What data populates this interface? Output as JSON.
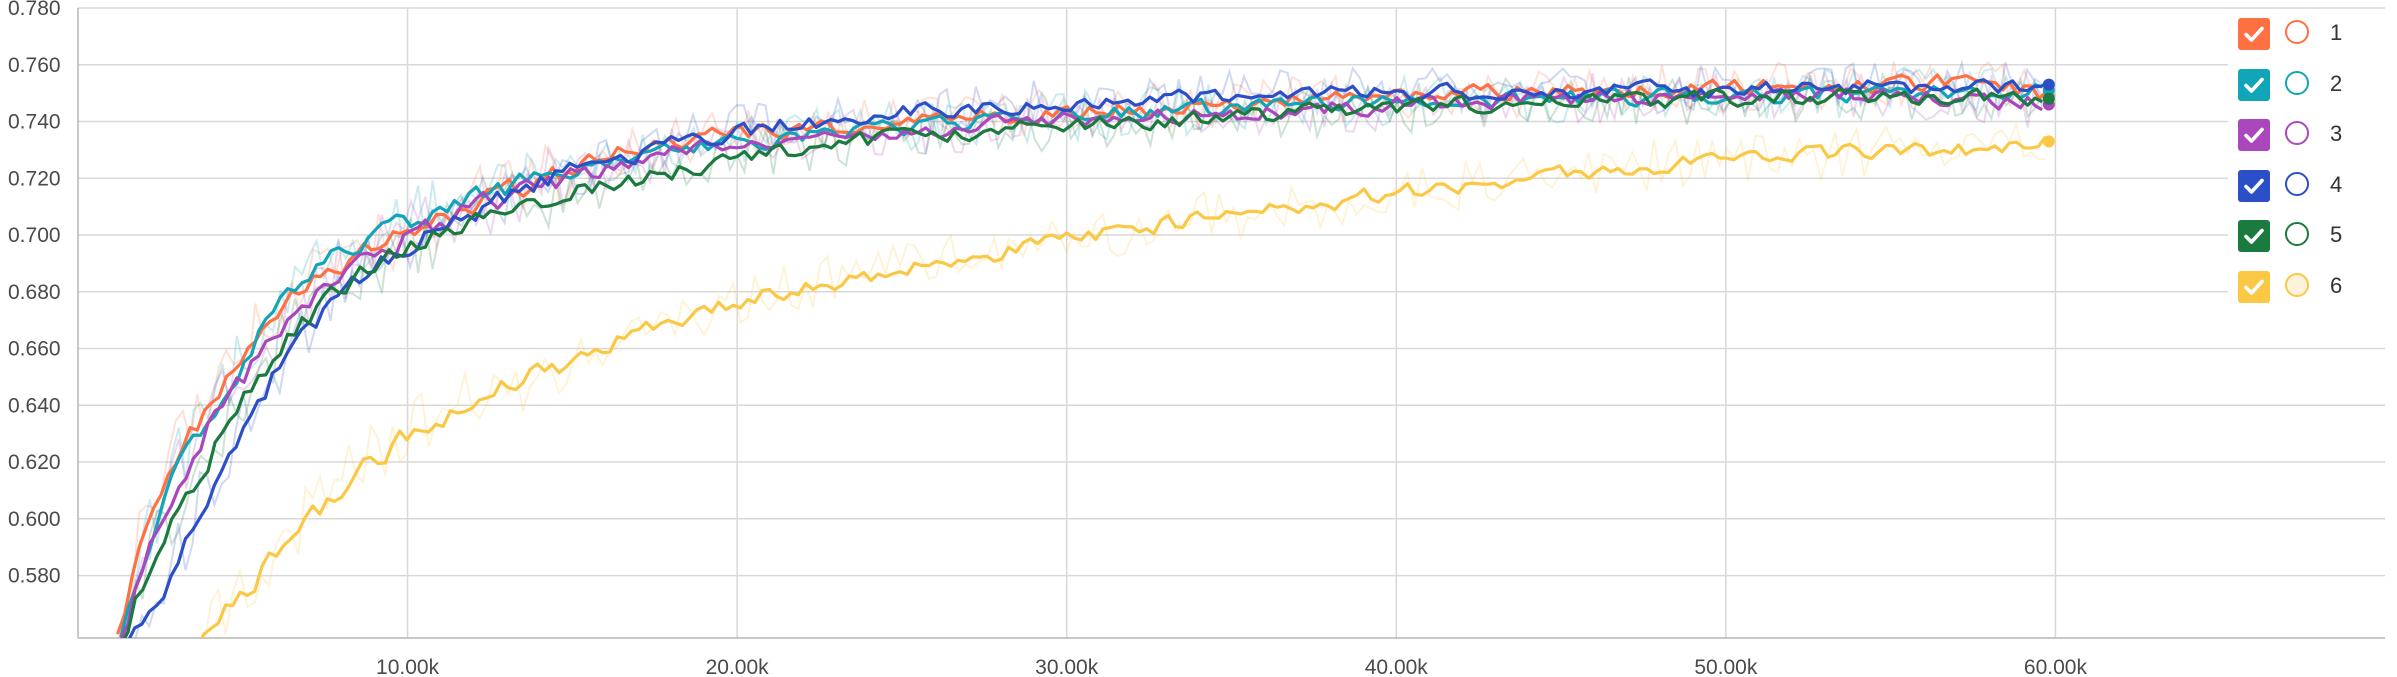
{
  "chart_data": {
    "type": "line",
    "title": "",
    "xlabel": "",
    "ylabel": "",
    "xlim": [
      0,
      70000
    ],
    "ylim": [
      0.558,
      0.78
    ],
    "x_ticks": [
      10000,
      20000,
      30000,
      40000,
      50000,
      60000
    ],
    "x_tick_labels": [
      "10.00k",
      "20.00k",
      "30.00k",
      "40.00k",
      "50.00k",
      "60.00k"
    ],
    "y_ticks": [
      0.58,
      0.6,
      0.62,
      0.64,
      0.66,
      0.68,
      0.7,
      0.72,
      0.74,
      0.76,
      0.78
    ],
    "y_tick_labels": [
      "0.580",
      "0.600",
      "0.620",
      "0.640",
      "0.660",
      "0.680",
      "0.700",
      "0.720",
      "0.740",
      "0.760",
      "0.780"
    ],
    "grid": true,
    "legend_position": "top-right",
    "series": [
      {
        "name": "1",
        "color": "#ff7043",
        "points": [
          [
            1200,
            0.558
          ],
          [
            2000,
            0.6
          ],
          [
            3000,
            0.625
          ],
          [
            4000,
            0.64
          ],
          [
            5000,
            0.66
          ],
          [
            6000,
            0.672
          ],
          [
            7000,
            0.685
          ],
          [
            8000,
            0.69
          ],
          [
            10000,
            0.702
          ],
          [
            12000,
            0.712
          ],
          [
            14000,
            0.72
          ],
          [
            16000,
            0.728
          ],
          [
            18000,
            0.733
          ],
          [
            20000,
            0.736
          ],
          [
            25000,
            0.74
          ],
          [
            30000,
            0.743
          ],
          [
            35000,
            0.746
          ],
          [
            40000,
            0.749
          ],
          [
            45000,
            0.751
          ],
          [
            50000,
            0.752
          ],
          [
            55000,
            0.753
          ],
          [
            57500,
            0.755
          ],
          [
            59800,
            0.749
          ]
        ]
      },
      {
        "name": "2",
        "color": "#12a5b8",
        "points": [
          [
            1300,
            0.558
          ],
          [
            2000,
            0.592
          ],
          [
            3000,
            0.62
          ],
          [
            4000,
            0.638
          ],
          [
            5000,
            0.657
          ],
          [
            6000,
            0.675
          ],
          [
            7000,
            0.688
          ],
          [
            8000,
            0.694
          ],
          [
            10000,
            0.705
          ],
          [
            12000,
            0.713
          ],
          [
            14000,
            0.72
          ],
          [
            16000,
            0.726
          ],
          [
            18000,
            0.73
          ],
          [
            20000,
            0.733
          ],
          [
            25000,
            0.738
          ],
          [
            30000,
            0.742
          ],
          [
            35000,
            0.745
          ],
          [
            40000,
            0.747
          ],
          [
            45000,
            0.748
          ],
          [
            50000,
            0.749
          ],
          [
            55000,
            0.75
          ],
          [
            59800,
            0.751
          ]
        ]
      },
      {
        "name": "3",
        "color": "#ab47bc",
        "points": [
          [
            1300,
            0.558
          ],
          [
            2000,
            0.588
          ],
          [
            3000,
            0.615
          ],
          [
            4000,
            0.635
          ],
          [
            5000,
            0.652
          ],
          [
            6000,
            0.665
          ],
          [
            7000,
            0.678
          ],
          [
            8000,
            0.688
          ],
          [
            10000,
            0.7
          ],
          [
            12000,
            0.71
          ],
          [
            14000,
            0.718
          ],
          [
            16000,
            0.724
          ],
          [
            18000,
            0.729
          ],
          [
            20000,
            0.733
          ],
          [
            25000,
            0.737
          ],
          [
            30000,
            0.74
          ],
          [
            35000,
            0.743
          ],
          [
            40000,
            0.746
          ],
          [
            45000,
            0.748
          ],
          [
            50000,
            0.749
          ],
          [
            55000,
            0.75
          ],
          [
            59800,
            0.746
          ]
        ]
      },
      {
        "name": "4",
        "color": "#2a4fc6",
        "points": [
          [
            1500,
            0.558
          ],
          [
            2500,
            0.572
          ],
          [
            3500,
            0.6
          ],
          [
            4500,
            0.625
          ],
          [
            5500,
            0.645
          ],
          [
            6500,
            0.66
          ],
          [
            7500,
            0.675
          ],
          [
            9000,
            0.69
          ],
          [
            10000,
            0.697
          ],
          [
            12000,
            0.708
          ],
          [
            14000,
            0.718
          ],
          [
            16000,
            0.726
          ],
          [
            18000,
            0.732
          ],
          [
            20000,
            0.737
          ],
          [
            25000,
            0.743
          ],
          [
            30000,
            0.747
          ],
          [
            35000,
            0.749
          ],
          [
            40000,
            0.75
          ],
          [
            45000,
            0.751
          ],
          [
            50000,
            0.751
          ],
          [
            55000,
            0.752
          ],
          [
            59800,
            0.753
          ]
        ]
      },
      {
        "name": "5",
        "color": "#1b7a3e",
        "points": [
          [
            1300,
            0.558
          ],
          [
            2000,
            0.583
          ],
          [
            3000,
            0.605
          ],
          [
            4000,
            0.625
          ],
          [
            5000,
            0.645
          ],
          [
            6000,
            0.66
          ],
          [
            7000,
            0.672
          ],
          [
            8000,
            0.683
          ],
          [
            10000,
            0.696
          ],
          [
            12000,
            0.706
          ],
          [
            14000,
            0.713
          ],
          [
            16000,
            0.718
          ],
          [
            18000,
            0.722
          ],
          [
            20000,
            0.728
          ],
          [
            25000,
            0.735
          ],
          [
            30000,
            0.739
          ],
          [
            35000,
            0.742
          ],
          [
            40000,
            0.745
          ],
          [
            45000,
            0.747
          ],
          [
            50000,
            0.748
          ],
          [
            55000,
            0.749
          ],
          [
            59800,
            0.748
          ]
        ]
      },
      {
        "name": "6",
        "color": "#fbc845",
        "points": [
          [
            3600,
            0.558
          ],
          [
            5000,
            0.575
          ],
          [
            6000,
            0.59
          ],
          [
            7000,
            0.6
          ],
          [
            8000,
            0.612
          ],
          [
            9000,
            0.622
          ],
          [
            10000,
            0.63
          ],
          [
            12000,
            0.642
          ],
          [
            14000,
            0.652
          ],
          [
            16000,
            0.662
          ],
          [
            18000,
            0.67
          ],
          [
            20000,
            0.677
          ],
          [
            22000,
            0.682
          ],
          [
            24000,
            0.686
          ],
          [
            26000,
            0.69
          ],
          [
            28000,
            0.694
          ],
          [
            30000,
            0.699
          ],
          [
            32000,
            0.702
          ],
          [
            34000,
            0.706
          ],
          [
            36000,
            0.709
          ],
          [
            38000,
            0.712
          ],
          [
            40000,
            0.715
          ],
          [
            42000,
            0.717
          ],
          [
            44000,
            0.72
          ],
          [
            46000,
            0.722
          ],
          [
            48000,
            0.725
          ],
          [
            50000,
            0.727
          ],
          [
            52000,
            0.728
          ],
          [
            54000,
            0.729
          ],
          [
            56000,
            0.73
          ],
          [
            58000,
            0.731
          ],
          [
            59800,
            0.733
          ]
        ]
      }
    ]
  },
  "legend": {
    "items": [
      {
        "label": "1",
        "color": "#ff7043",
        "checked": true
      },
      {
        "label": "2",
        "color": "#12a5b8",
        "checked": true
      },
      {
        "label": "3",
        "color": "#ab47bc",
        "checked": true
      },
      {
        "label": "4",
        "color": "#2a4fc6",
        "checked": true
      },
      {
        "label": "5",
        "color": "#1b7a3e",
        "checked": true
      },
      {
        "label": "6",
        "color": "#fbc845",
        "checked": true
      }
    ]
  }
}
